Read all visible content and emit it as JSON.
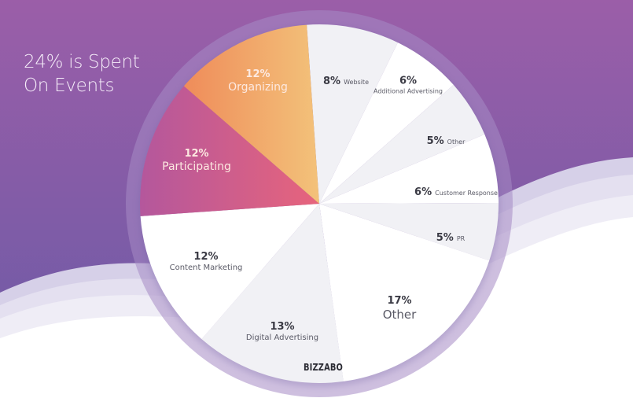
{
  "headline": {
    "line1": "24% is Spent",
    "line2": "On Events"
  },
  "brand": "BIZZABO",
  "colors": {
    "bg_top": "#9b5ea8",
    "bg_bottom": "#6a5aa6",
    "organizing_start": "#ef8c5a",
    "organizing_end": "#f3c27a",
    "participating_start": "#b4579c",
    "participating_end": "#e7647c",
    "slice_light": "#f1f1f5",
    "slice_white": "#ffffff",
    "ring": "#a58ac4"
  },
  "slices": [
    {
      "pct": "8%",
      "name": "Website",
      "layout": "inline",
      "tone": "dark",
      "pct_size": 13,
      "name_size": 8
    },
    {
      "pct": "6%",
      "name": "Additional Advertising",
      "layout": "stack",
      "tone": "dark",
      "pct_size": 13,
      "name_size": 8
    },
    {
      "pct": "5%",
      "name": "Other",
      "layout": "inline",
      "tone": "dark",
      "pct_size": 13,
      "name_size": 8
    },
    {
      "pct": "6%",
      "name": "Customer Response",
      "layout": "inline",
      "tone": "dark",
      "pct_size": 13,
      "name_size": 8
    },
    {
      "pct": "5%",
      "name": "PR",
      "layout": "inline",
      "tone": "dark",
      "pct_size": 13,
      "name_size": 8
    },
    {
      "pct": "17%",
      "name": "Other",
      "layout": "stack",
      "tone": "dark",
      "pct_size": 13,
      "name_size": 15
    },
    {
      "pct": "13%",
      "name": "Digital Advertising",
      "layout": "stack",
      "tone": "dark",
      "pct_size": 13,
      "name_size": 10
    },
    {
      "pct": "12%",
      "name": "Content Marketing",
      "layout": "stack",
      "tone": "dark",
      "pct_size": 13,
      "name_size": 10
    },
    {
      "pct": "12%",
      "name": "Participating",
      "layout": "stack",
      "tone": "light",
      "pct_size": 13,
      "name_size": 14
    },
    {
      "pct": "12%",
      "name": "Organizing",
      "layout": "stack",
      "tone": "light",
      "pct_size": 13,
      "name_size": 14
    }
  ],
  "chart_data": {
    "type": "pie",
    "title": "24% is Spent On Events",
    "categories": [
      "Website",
      "Additional Advertising",
      "Other",
      "Customer Response",
      "PR",
      "Other",
      "Digital Advertising",
      "Content Marketing",
      "Participating",
      "Organizing"
    ],
    "values": [
      8,
      6,
      5,
      6,
      5,
      17,
      13,
      12,
      12,
      12
    ],
    "unit": "%",
    "highlighted": [
      "Participating",
      "Organizing"
    ],
    "annotation": "24% is Spent On Events",
    "source_brand": "BIZZABO"
  }
}
